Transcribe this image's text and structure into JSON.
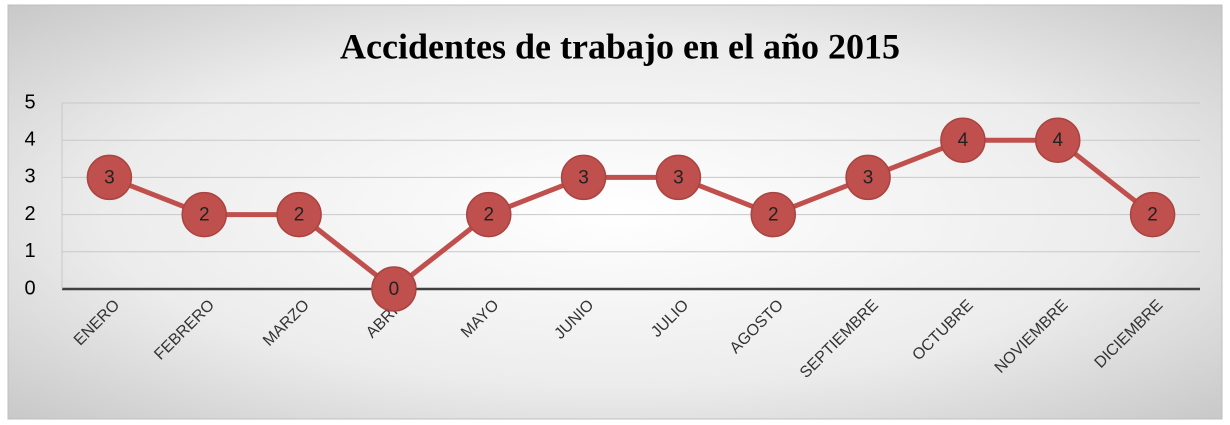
{
  "chart_data": {
    "type": "line",
    "title": "Accidentes de trabajo en el año 2015",
    "categories": [
      "ENERO",
      "FEBRERO",
      "MARZO",
      "ABRIL",
      "MAYO",
      "JUNIO",
      "JULIO",
      "AGOSTO",
      "SEPTIEMBRE",
      "OCTUBRE",
      "NOVIEMBRE",
      "DICIEMBRE"
    ],
    "values": [
      3,
      2,
      2,
      0,
      2,
      3,
      3,
      2,
      3,
      4,
      4,
      2
    ],
    "color": "#c0504d",
    "ylim": [
      0,
      5
    ],
    "yticks": [
      0,
      1,
      2,
      3,
      4,
      5
    ],
    "grid": true
  }
}
